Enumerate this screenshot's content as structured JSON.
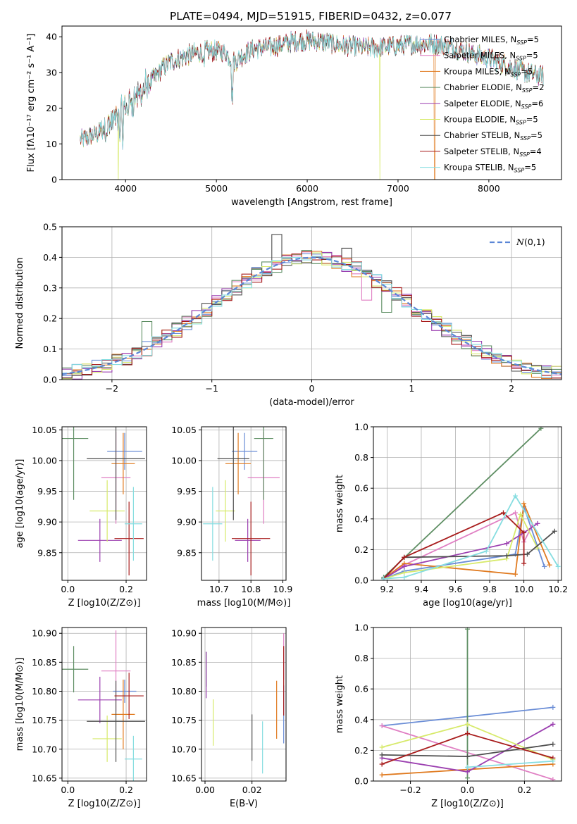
{
  "figure_title": "PLATE=0494, MJD=51915, FIBERID=0432, z=0.077",
  "colors": {
    "series": [
      "#6a8dd6",
      "#e07fc3",
      "#e07a1f",
      "#5e8e63",
      "#9b3fb0",
      "#d7ea6b",
      "#4f4f4f",
      "#a81c1c",
      "#86dde0"
    ],
    "grid": "#b0b0b0",
    "gaussian": "#5b86d6"
  },
  "chart_data": [
    {
      "id": "spectrum",
      "type": "line",
      "title": "PLATE=0494, MJD=51915, FIBERID=0432, z=0.077",
      "xlabel": "wavelength [Angstrom, rest frame]",
      "ylabel": "Flux [fλ10⁻¹⁷ erg cm⁻² s⁻¹ A⁻¹]",
      "xlim": [
        3300,
        8800
      ],
      "ylim": [
        0,
        43
      ],
      "xticks": [
        4000,
        5000,
        6000,
        7000,
        8000
      ],
      "yticks": [
        0,
        10,
        20,
        30,
        40
      ],
      "grid": false,
      "legend_position": "right",
      "continuum": {
        "x": [
          3500,
          3600,
          3700,
          3800,
          3900,
          4000,
          4100,
          4200,
          4300,
          4400,
          4500,
          4600,
          4700,
          4800,
          4900,
          5000,
          5100,
          5200,
          5300,
          5400,
          5500,
          5600,
          5800,
          6000,
          6200,
          6400,
          6600,
          6800,
          7000,
          7200,
          7400,
          7600,
          7800,
          8000,
          8200,
          8400,
          8600
        ],
        "y": [
          11,
          12,
          13,
          15,
          17,
          20,
          23,
          25,
          28,
          31,
          33,
          34,
          35,
          35.5,
          36,
          36,
          35.5,
          33,
          35,
          36.5,
          37,
          37,
          38.5,
          39,
          38.5,
          37.5,
          37,
          37,
          37.5,
          38,
          38,
          37,
          35.5,
          34,
          32,
          30,
          29
        ]
      },
      "series": [
        {
          "name": "Chabrier MILES, N_SSP=5"
        },
        {
          "name": "Salpeter MILES, N_SSP=5"
        },
        {
          "name": "Kroupa MILES, N_SSP=5"
        },
        {
          "name": "Chabrier ELODIE, N_SSP=2"
        },
        {
          "name": "Salpeter ELODIE, N_SSP=6"
        },
        {
          "name": "Kroupa ELODIE, N_SSP=5"
        },
        {
          "name": "Chabrier STELIB, N_SSP=5"
        },
        {
          "name": "Salpeter STELIB, N_SSP=4"
        },
        {
          "name": "Kroupa STELIB, N_SSP=5"
        }
      ]
    },
    {
      "id": "residuals",
      "type": "step",
      "xlabel": "(data-model)/error",
      "ylabel": "Normed distribution",
      "xlim": [
        -2.5,
        2.5
      ],
      "ylim": [
        0,
        0.5
      ],
      "xticks": [
        -2,
        -1,
        0,
        1,
        2
      ],
      "yticks": [
        0.0,
        0.1,
        0.2,
        0.3,
        0.4,
        0.5
      ],
      "grid": true,
      "legend_position": "top-right",
      "gaussian_label": "N(0,1)",
      "bin_width": 0.1,
      "highlights": [
        {
          "series": 6,
          "x": -0.3,
          "y": 0.475
        },
        {
          "series": 3,
          "x": -1.6,
          "y": 0.19
        },
        {
          "series": 3,
          "x": -0.1,
          "y": 0.41
        },
        {
          "series": 6,
          "x": 0.4,
          "y": 0.43
        },
        {
          "series": 1,
          "x": 0.55,
          "y": 0.26
        },
        {
          "series": 3,
          "x": 0.75,
          "y": 0.22
        }
      ]
    },
    {
      "id": "age_vs_Z",
      "type": "errorbar",
      "xlabel": "Z [log10(Z/Z⊙)]",
      "ylabel": "age [log10(age/yr)]",
      "xlim": [
        -0.02,
        0.27
      ],
      "ylim": [
        9.805,
        10.055
      ],
      "xticks": [
        0.0,
        0.2
      ],
      "yticks": [
        9.85,
        9.9,
        9.95,
        10.0,
        10.05
      ],
      "grid": true,
      "points": [
        {
          "x": 0.195,
          "y": 10.015,
          "xerr": 0.06,
          "yerr": 0.03,
          "series": 0
        },
        {
          "x": 0.165,
          "y": 9.972,
          "xerr": 0.05,
          "yerr": 0.075,
          "series": 1
        },
        {
          "x": 0.19,
          "y": 9.995,
          "xerr": 0.04,
          "yerr": 0.05,
          "series": 2
        },
        {
          "x": 0.02,
          "y": 10.036,
          "xerr": 0.05,
          "yerr": 0.1,
          "series": 3
        },
        {
          "x": 0.11,
          "y": 9.87,
          "xerr": 0.075,
          "yerr": 0.035,
          "series": 4
        },
        {
          "x": 0.135,
          "y": 9.918,
          "xerr": 0.06,
          "yerr": 0.05,
          "series": 5
        },
        {
          "x": 0.165,
          "y": 10.003,
          "xerr": 0.1,
          "yerr": 0.1,
          "series": 6
        },
        {
          "x": 0.21,
          "y": 9.873,
          "xerr": 0.05,
          "yerr": 0.06,
          "series": 7
        },
        {
          "x": 0.225,
          "y": 9.897,
          "xerr": 0.03,
          "yerr": 0.06,
          "series": 8
        }
      ]
    },
    {
      "id": "age_vs_mass",
      "type": "errorbar",
      "xlabel": "mass [log10(M/M⊙)]",
      "ylabel": "",
      "xlim": [
        10.645,
        10.91
      ],
      "ylim": [
        9.805,
        10.055
      ],
      "xticks": [
        10.7,
        10.8,
        10.9
      ],
      "yticks": [
        9.85,
        9.9,
        9.95,
        10.0,
        10.05
      ],
      "grid": true,
      "points": [
        {
          "x": 10.78,
          "y": 10.015,
          "xerr": 0.04,
          "yerr": 0.03,
          "series": 0
        },
        {
          "x": 10.84,
          "y": 9.972,
          "xerr": 0.05,
          "yerr": 0.075,
          "series": 1
        },
        {
          "x": 10.76,
          "y": 9.995,
          "xerr": 0.04,
          "yerr": 0.05,
          "series": 2
        },
        {
          "x": 10.84,
          "y": 10.036,
          "xerr": 0.03,
          "yerr": 0.1,
          "series": 3
        },
        {
          "x": 10.79,
          "y": 9.87,
          "xerr": 0.04,
          "yerr": 0.035,
          "series": 4
        },
        {
          "x": 10.72,
          "y": 9.918,
          "xerr": 0.03,
          "yerr": 0.05,
          "series": 5
        },
        {
          "x": 10.745,
          "y": 10.003,
          "xerr": 0.05,
          "yerr": 0.1,
          "series": 6
        },
        {
          "x": 10.8,
          "y": 9.873,
          "xerr": 0.06,
          "yerr": 0.06,
          "series": 7
        },
        {
          "x": 10.68,
          "y": 9.897,
          "xerr": 0.03,
          "yerr": 0.06,
          "series": 8
        }
      ]
    },
    {
      "id": "weight_vs_age",
      "type": "line",
      "xlabel": "age [log10(age/yr)]",
      "ylabel": "mass weight",
      "xlim": [
        9.12,
        10.22
      ],
      "ylim": [
        0,
        1.0
      ],
      "xticks": [
        9.2,
        9.4,
        9.6,
        9.8,
        10.0,
        10.2
      ],
      "yticks": [
        0.0,
        0.2,
        0.4,
        0.6,
        0.8,
        1.0
      ],
      "grid": true,
      "series": [
        {
          "x": [
            9.18,
            9.3,
            9.95,
            10.0,
            10.12
          ],
          "y": [
            0.01,
            0.06,
            0.17,
            0.48,
            0.09
          ]
        },
        {
          "x": [
            9.18,
            9.3,
            9.95,
            10.0,
            10.05
          ],
          "y": [
            0.01,
            0.1,
            0.44,
            0.25,
            0.36
          ]
        },
        {
          "x": [
            9.18,
            9.3,
            9.95,
            10.0,
            10.15
          ],
          "y": [
            0.01,
            0.11,
            0.04,
            0.5,
            0.1
          ]
        },
        {
          "x": [
            9.18,
            10.1
          ],
          "y": [
            0.02,
            0.99
          ]
        },
        {
          "x": [
            9.18,
            9.3,
            9.9,
            10.0,
            10.08
          ],
          "y": [
            0.01,
            0.09,
            0.24,
            0.31,
            0.37
          ]
        },
        {
          "x": [
            9.18,
            9.3,
            9.9,
            9.98,
            10.08
          ],
          "y": [
            0.01,
            0.05,
            0.14,
            0.43,
            0.21
          ]
        },
        {
          "x": [
            9.18,
            9.3,
            9.9,
            10.02,
            10.18
          ],
          "y": [
            0.01,
            0.15,
            0.16,
            0.17,
            0.32
          ]
        },
        {
          "x": [
            9.18,
            9.3,
            9.88,
            10.0,
            10.0
          ],
          "y": [
            0.01,
            0.15,
            0.44,
            0.31,
            0.11
          ]
        },
        {
          "x": [
            9.18,
            9.3,
            9.78,
            9.95,
            10.2
          ],
          "y": [
            0.01,
            0.02,
            0.19,
            0.55,
            0.09
          ]
        }
      ]
    },
    {
      "id": "mass_vs_Z",
      "type": "errorbar",
      "xlabel": "Z [log10(Z/Z⊙)]",
      "ylabel": "mass [log10(M/M⊙)]",
      "xlim": [
        -0.02,
        0.27
      ],
      "ylim": [
        10.645,
        10.91
      ],
      "xticks": [
        0.0,
        0.2
      ],
      "yticks": [
        10.65,
        10.7,
        10.75,
        10.8,
        10.85,
        10.9
      ],
      "grid": true,
      "points": [
        {
          "x": 0.195,
          "y": 10.8,
          "xerr": 0.04,
          "yerr": 0.02,
          "series": 0
        },
        {
          "x": 0.165,
          "y": 10.835,
          "xerr": 0.05,
          "yerr": 0.07,
          "series": 1
        },
        {
          "x": 0.19,
          "y": 10.76,
          "xerr": 0.04,
          "yerr": 0.06,
          "series": 2
        },
        {
          "x": 0.02,
          "y": 10.838,
          "xerr": 0.05,
          "yerr": 0.04,
          "series": 3
        },
        {
          "x": 0.11,
          "y": 10.785,
          "xerr": 0.075,
          "yerr": 0.04,
          "series": 4
        },
        {
          "x": 0.135,
          "y": 10.718,
          "xerr": 0.05,
          "yerr": 0.04,
          "series": 5
        },
        {
          "x": 0.165,
          "y": 10.748,
          "xerr": 0.1,
          "yerr": 0.07,
          "series": 6
        },
        {
          "x": 0.21,
          "y": 10.792,
          "xerr": 0.05,
          "yerr": 0.04,
          "series": 7
        },
        {
          "x": 0.225,
          "y": 10.683,
          "xerr": 0.03,
          "yerr": 0.04,
          "series": 8
        }
      ]
    },
    {
      "id": "mass_vs_ebv",
      "type": "errorbar",
      "xlabel": "E(B-V)",
      "ylabel": "",
      "xlim": [
        -0.0015,
        0.0345
      ],
      "ylim": [
        10.645,
        10.91
      ],
      "xticks": [
        0.0,
        0.02
      ],
      "yticks": [
        10.65,
        10.7,
        10.75,
        10.8,
        10.85,
        10.9
      ],
      "grid": true,
      "points": [
        {
          "x": 0.0335,
          "y": 10.76,
          "xerr": 0,
          "yerr": 0.05,
          "series": 0
        },
        {
          "x": 0.0335,
          "y": 10.86,
          "xerr": 0,
          "yerr": 0.04,
          "series": 1
        },
        {
          "x": 0.0305,
          "y": 10.768,
          "xerr": 0,
          "yerr": 0.05,
          "series": 2
        },
        {
          "x": 0.0005,
          "y": 10.838,
          "xerr": 0,
          "yerr": 0.03,
          "series": 3
        },
        {
          "x": 0.0005,
          "y": 10.828,
          "xerr": 0,
          "yerr": 0.04,
          "series": 4
        },
        {
          "x": 0.0035,
          "y": 10.746,
          "xerr": 0,
          "yerr": 0.04,
          "series": 5
        },
        {
          "x": 0.02,
          "y": 10.72,
          "xerr": 0,
          "yerr": 0.04,
          "series": 6
        },
        {
          "x": 0.0335,
          "y": 10.818,
          "xerr": 0,
          "yerr": 0.06,
          "series": 7
        },
        {
          "x": 0.0245,
          "y": 10.703,
          "xerr": 0,
          "yerr": 0.045,
          "series": 8
        }
      ]
    },
    {
      "id": "weight_vs_Z",
      "type": "line",
      "xlabel": "Z [log10(Z/Z⊙)]",
      "ylabel": "mass weight",
      "xlim": [
        -0.33,
        0.33
      ],
      "ylim": [
        0,
        1.0
      ],
      "xticks": [
        -0.2,
        0.0,
        0.2
      ],
      "yticks": [
        0.0,
        0.2,
        0.4,
        0.6,
        0.8,
        1.0
      ],
      "grid": true,
      "series": [
        {
          "x": [
            -0.3,
            0.3
          ],
          "y": [
            0.36,
            0.48
          ]
        },
        {
          "x": [
            -0.3,
            0.3
          ],
          "y": [
            0.36,
            0.01
          ]
        },
        {
          "x": [
            -0.3,
            0.3
          ],
          "y": [
            0.04,
            0.11
          ]
        },
        {
          "x": [
            0.0,
            0.0
          ],
          "y": [
            0.02,
            0.99
          ]
        },
        {
          "x": [
            -0.3,
            0.0,
            0.3
          ],
          "y": [
            0.15,
            0.06,
            0.37
          ]
        },
        {
          "x": [
            -0.3,
            0.0,
            0.3
          ],
          "y": [
            0.22,
            0.37,
            0.14
          ]
        },
        {
          "x": [
            -0.3,
            0.0,
            0.3
          ],
          "y": [
            0.17,
            0.16,
            0.24
          ]
        },
        {
          "x": [
            -0.3,
            0.0,
            0.3
          ],
          "y": [
            0.11,
            0.31,
            0.15
          ]
        },
        {
          "x": [
            0.0,
            0.3
          ],
          "y": [
            0.09,
            0.13
          ]
        }
      ]
    }
  ]
}
